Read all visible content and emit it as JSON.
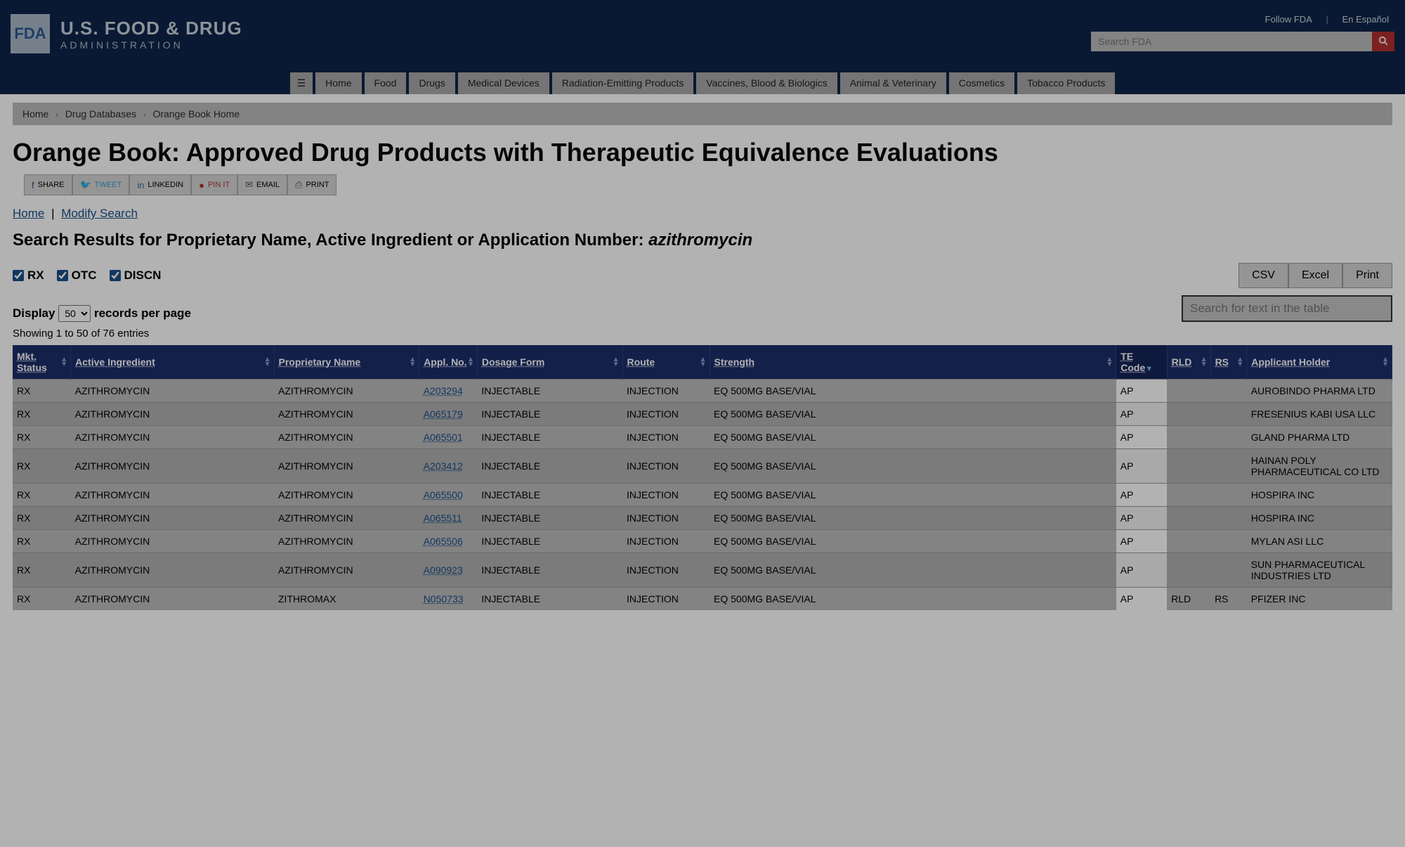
{
  "header": {
    "logo_box": "FDA",
    "logo_main": "U.S. FOOD & DRUG",
    "logo_sub": "ADMINISTRATION",
    "top_links": {
      "follow": "Follow FDA",
      "espanol": "En Español"
    },
    "search_placeholder": "Search FDA"
  },
  "nav": [
    "Home",
    "Food",
    "Drugs",
    "Medical Devices",
    "Radiation-Emitting Products",
    "Vaccines, Blood & Biologics",
    "Animal & Veterinary",
    "Cosmetics",
    "Tobacco Products"
  ],
  "breadcrumb": [
    "Home",
    "Drug Databases",
    "Orange Book Home"
  ],
  "page_title": "Orange Book: Approved Drug Products with Therapeutic Equivalence Evaluations",
  "share": {
    "share": "SHARE",
    "tweet": "TWEET",
    "linkedin": "LINKEDIN",
    "pinit": "PIN IT",
    "email": "EMAIL",
    "print": "PRINT"
  },
  "subnav": {
    "home": "Home",
    "modify": "Modify Search"
  },
  "results_heading_prefix": "Search Results for Proprietary Name, Active Ingredient or Application Number: ",
  "results_term": "azithromycin",
  "checkboxes": {
    "rx": "RX",
    "otc": "OTC",
    "discn": "DISCN"
  },
  "export": {
    "csv": "CSV",
    "excel": "Excel",
    "print": "Print"
  },
  "display": {
    "label_pre": "Display",
    "label_post": "records per page",
    "value": "50"
  },
  "showing": "Showing 1 to 50 of 76 entries",
  "table_search_placeholder": "Search for text in the table",
  "columns": [
    "Mkt. Status",
    "Active Ingredient",
    "Proprietary Name",
    "Appl. No.",
    "Dosage Form",
    "Route",
    "Strength",
    "TE Code",
    "RLD",
    "RS",
    "Applicant Holder"
  ],
  "rows": [
    {
      "mkt": "RX",
      "ai": "AZITHROMYCIN",
      "pn": "AZITHROMYCIN",
      "appl": "A203294",
      "df": "INJECTABLE",
      "route": "INJECTION",
      "str": "EQ 500MG BASE/VIAL",
      "te": "AP",
      "rld": "",
      "rs": "",
      "ah": "AUROBINDO PHARMA LTD"
    },
    {
      "mkt": "RX",
      "ai": "AZITHROMYCIN",
      "pn": "AZITHROMYCIN",
      "appl": "A065179",
      "df": "INJECTABLE",
      "route": "INJECTION",
      "str": "EQ 500MG BASE/VIAL",
      "te": "AP",
      "rld": "",
      "rs": "",
      "ah": "FRESENIUS KABI USA LLC"
    },
    {
      "mkt": "RX",
      "ai": "AZITHROMYCIN",
      "pn": "AZITHROMYCIN",
      "appl": "A065501",
      "df": "INJECTABLE",
      "route": "INJECTION",
      "str": "EQ 500MG BASE/VIAL",
      "te": "AP",
      "rld": "",
      "rs": "",
      "ah": "GLAND PHARMA LTD"
    },
    {
      "mkt": "RX",
      "ai": "AZITHROMYCIN",
      "pn": "AZITHROMYCIN",
      "appl": "A203412",
      "df": "INJECTABLE",
      "route": "INJECTION",
      "str": "EQ 500MG BASE/VIAL",
      "te": "AP",
      "rld": "",
      "rs": "",
      "ah": "HAINAN POLY PHARMACEUTICAL CO LTD"
    },
    {
      "mkt": "RX",
      "ai": "AZITHROMYCIN",
      "pn": "AZITHROMYCIN",
      "appl": "A065500",
      "df": "INJECTABLE",
      "route": "INJECTION",
      "str": "EQ 500MG BASE/VIAL",
      "te": "AP",
      "rld": "",
      "rs": "",
      "ah": "HOSPIRA INC"
    },
    {
      "mkt": "RX",
      "ai": "AZITHROMYCIN",
      "pn": "AZITHROMYCIN",
      "appl": "A065511",
      "df": "INJECTABLE",
      "route": "INJECTION",
      "str": "EQ 500MG BASE/VIAL",
      "te": "AP",
      "rld": "",
      "rs": "",
      "ah": "HOSPIRA INC"
    },
    {
      "mkt": "RX",
      "ai": "AZITHROMYCIN",
      "pn": "AZITHROMYCIN",
      "appl": "A065506",
      "df": "INJECTABLE",
      "route": "INJECTION",
      "str": "EQ 500MG BASE/VIAL",
      "te": "AP",
      "rld": "",
      "rs": "",
      "ah": "MYLAN ASI LLC"
    },
    {
      "mkt": "RX",
      "ai": "AZITHROMYCIN",
      "pn": "AZITHROMYCIN",
      "appl": "A090923",
      "df": "INJECTABLE",
      "route": "INJECTION",
      "str": "EQ 500MG BASE/VIAL",
      "te": "AP",
      "rld": "",
      "rs": "",
      "ah": "SUN PHARMACEUTICAL INDUSTRIES LTD"
    },
    {
      "mkt": "RX",
      "ai": "AZITHROMYCIN",
      "pn": "ZITHROMAX",
      "appl": "N050733",
      "df": "INJECTABLE",
      "route": "INJECTION",
      "str": "EQ 500MG BASE/VIAL",
      "te": "AP",
      "rld": "RLD",
      "rs": "RS",
      "ah": "PFIZER INC"
    }
  ]
}
